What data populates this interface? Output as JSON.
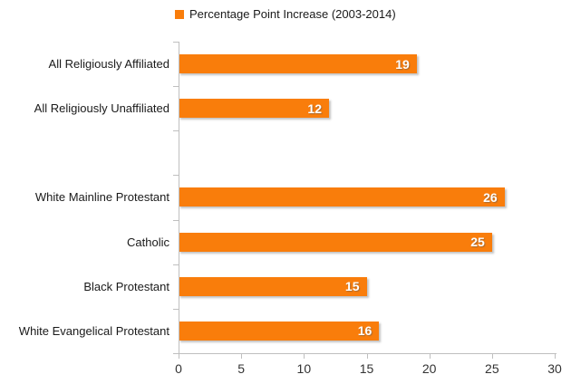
{
  "legend": {
    "label": "Percentage Point Increase (2003-2014)"
  },
  "colors": {
    "bar": "#f97d0b",
    "axis": "#bfbfbf",
    "category_text": "#1a1a1a",
    "tick_text": "#333333",
    "value_text": "#ffffff"
  },
  "chart_data": {
    "type": "bar",
    "orientation": "horizontal",
    "title": "Percentage Point Increase (2003-2014)",
    "legend_position": "top",
    "grid": false,
    "categories": [
      "All Religiously Affiliated",
      "All Religiously Unaffiliated",
      "",
      "White Mainline Protestant",
      "Catholic",
      "Black Protestant",
      "White Evangelical Protestant"
    ],
    "values": [
      19,
      12,
      null,
      26,
      25,
      15,
      16
    ],
    "xlabel": "",
    "ylabel": "",
    "xlim": [
      0,
      30
    ],
    "x_ticks": [
      0,
      5,
      10,
      15,
      20,
      25,
      30
    ]
  }
}
